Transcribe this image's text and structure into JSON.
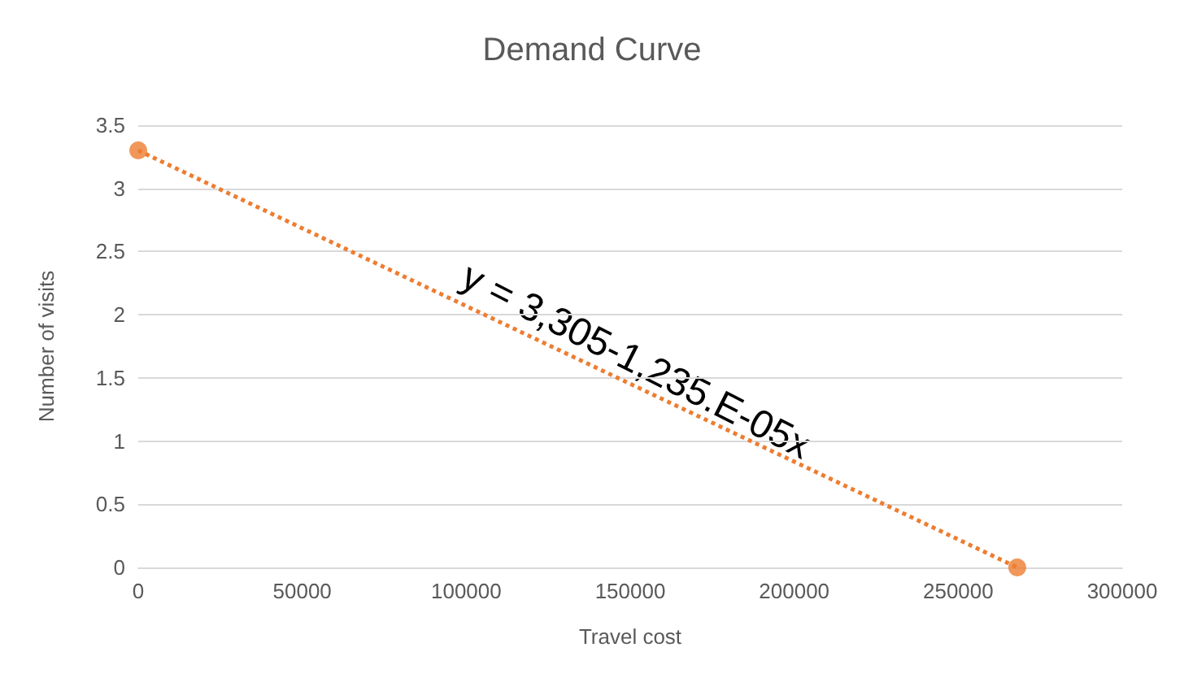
{
  "chart_data": {
    "type": "scatter",
    "title": "Demand Curve",
    "xlabel": "Travel cost",
    "ylabel": "Number of visits",
    "x": [
      0,
      268000
    ],
    "series": [
      {
        "color": "#ed7d31",
        "values": [
          3.3,
          0
        ],
        "marker": "circle"
      },
      {
        "type": "line",
        "color": "#ed7d31",
        "x": [
          0,
          268000
        ],
        "values": [
          3.3,
          0
        ],
        "line_style": "dotted",
        "marker": "none"
      }
    ],
    "annotations": [
      "y = 3,305-1,235.E-05x"
    ],
    "xlim": [
      0,
      300000
    ],
    "xticks": [
      0,
      50000,
      100000,
      150000,
      200000,
      250000,
      300000
    ],
    "ylim": [
      0,
      3.5
    ],
    "yticks": [
      0,
      0.5,
      1,
      1.5,
      2,
      2.5,
      3,
      3.5
    ],
    "grid": "y"
  }
}
